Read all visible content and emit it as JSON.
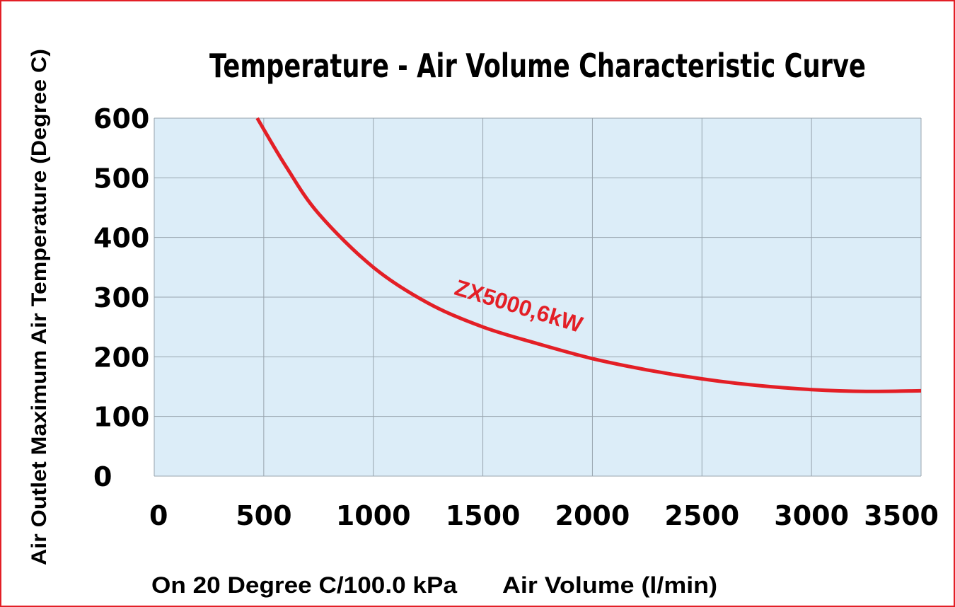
{
  "chart_data": {
    "type": "line",
    "title": "Temperature - Air Volume Characteristic Curve",
    "xlabel": "Air Volume (l/min)",
    "ylabel": "Air Outlet Maximum Air Temperature (Degree C)",
    "note": "On 20 Degree C/100.0 kPa",
    "xlim": [
      0,
      3500
    ],
    "ylim": [
      0,
      600
    ],
    "x_ticks": [
      0,
      500,
      1000,
      1500,
      2000,
      2500,
      3000,
      3500
    ],
    "y_ticks": [
      0,
      100,
      200,
      300,
      400,
      500,
      600
    ],
    "grid": true,
    "series": [
      {
        "name": "ZX5000,6kW",
        "color": "#e31f26",
        "x": [
          470,
          600,
          750,
          1000,
          1250,
          1500,
          1750,
          2000,
          2250,
          2500,
          2750,
          3000,
          3250,
          3500
        ],
        "y": [
          600,
          520,
          440,
          350,
          290,
          250,
          222,
          197,
          178,
          163,
          152,
          145,
          142,
          143
        ]
      }
    ],
    "colors": {
      "plot_background": "#dcedf8",
      "grid": "#98a4ae",
      "frame": "#e31f26",
      "text": "#000000"
    }
  }
}
